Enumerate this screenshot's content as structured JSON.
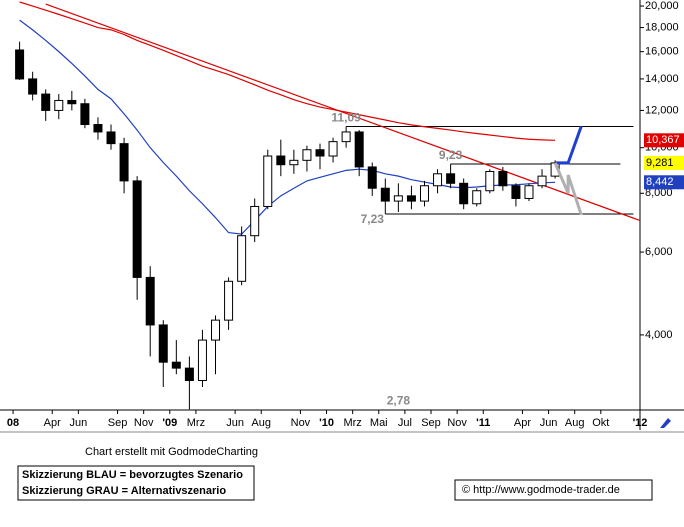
{
  "chart_data": {
    "type": "candlestick",
    "x": [
      "2008-01",
      "2008-02",
      "2008-03",
      "2008-04",
      "2008-05",
      "2008-06",
      "2008-07",
      "2008-08",
      "2008-09",
      "2008-10",
      "2008-11",
      "2008-12",
      "2009-01",
      "2009-02",
      "2009-03",
      "2009-04",
      "2009-05",
      "2009-06",
      "2009-07",
      "2009-08",
      "2009-09",
      "2009-10",
      "2009-11",
      "2009-12",
      "2010-01",
      "2010-02",
      "2010-03",
      "2010-04",
      "2010-05",
      "2010-06",
      "2010-07",
      "2010-08",
      "2010-09",
      "2010-10",
      "2010-11",
      "2010-12",
      "2011-01",
      "2011-02",
      "2011-03",
      "2011-04",
      "2011-05",
      "2011-06"
    ],
    "open": [
      16130,
      14000,
      13000,
      12000,
      12600,
      12400,
      11200,
      10800,
      10200,
      8500,
      5300,
      4200,
      3500,
      3400,
      3200,
      3900,
      4300,
      5200,
      6500,
      7500,
      9600,
      9200,
      9400,
      9900,
      9600,
      10300,
      10800,
      9100,
      8200,
      7700,
      7900,
      7700,
      8300,
      8800,
      8400,
      7600,
      8100,
      8900,
      8300,
      7800,
      8300,
      8700
    ],
    "high": [
      16800,
      14500,
      13300,
      13000,
      13200,
      12700,
      11600,
      11200,
      10500,
      8700,
      5600,
      4300,
      3900,
      3600,
      4100,
      4400,
      5300,
      6800,
      7800,
      9900,
      10400,
      9900,
      10100,
      10200,
      10500,
      11090,
      10900,
      9300,
      8600,
      8400,
      8300,
      8500,
      9000,
      9230,
      8600,
      8200,
      9000,
      9100,
      8400,
      8400,
      9000,
      9400
    ],
    "low": [
      13930,
      12600,
      11400,
      11500,
      12000,
      11000,
      10400,
      9900,
      8000,
      4750,
      3600,
      3100,
      3300,
      2780,
      3100,
      3300,
      4100,
      5100,
      6300,
      7400,
      8700,
      8800,
      8900,
      9000,
      9300,
      10000,
      8700,
      7900,
      7230,
      7300,
      7400,
      7500,
      8000,
      8200,
      7400,
      7500,
      8000,
      8100,
      7500,
      7700,
      8200,
      8600
    ],
    "close": [
      14000,
      13000,
      12000,
      12600,
      12400,
      11200,
      10800,
      10200,
      8500,
      5300,
      4200,
      3500,
      3400,
      3200,
      3900,
      4300,
      5200,
      6500,
      7500,
      9600,
      9200,
      9400,
      9900,
      9600,
      10300,
      10800,
      9100,
      8200,
      7700,
      7900,
      7700,
      8300,
      8800,
      8400,
      7600,
      8100,
      8900,
      8300,
      7800,
      8300,
      8700,
      9281
    ],
    "series": [
      {
        "color": "#2040c0",
        "values": [
          18670,
          17800,
          16900,
          16000,
          15100,
          14200,
          13300,
          12700,
          11800,
          10900,
          10000,
          9300,
          8700,
          8100,
          7600,
          7100,
          6600,
          6550,
          7000,
          7500,
          7900,
          8200,
          8500,
          8650,
          8800,
          8950,
          9000,
          8950,
          8800,
          8700,
          8550,
          8450,
          8350,
          8250,
          8220,
          8250,
          8300,
          8330,
          8340,
          8380,
          8420,
          8442
        ]
      },
      {
        "color": "#e00000",
        "values": [
          20400,
          20000,
          19600,
          19200,
          18800,
          18400,
          18000,
          17800,
          17400,
          16900,
          16500,
          16100,
          15700,
          15300,
          14900,
          14600,
          14300,
          13950,
          13600,
          13250,
          12950,
          12650,
          12400,
          12200,
          12050,
          11900,
          11750,
          11600,
          11450,
          11300,
          11180,
          11080,
          10990,
          10900,
          10800,
          10720,
          10640,
          10560,
          10480,
          10420,
          10390,
          10367
        ]
      }
    ],
    "trendline": {
      "color": "#e00000",
      "points": [
        [
          "2008-03",
          20200
        ],
        [
          "2012-01",
          6920
        ]
      ]
    },
    "levels": [
      {
        "value": 11090,
        "from": "2010-02",
        "to": "2011-12"
      },
      {
        "value": 9230,
        "from": "2010-10",
        "to": "2011-11"
      },
      {
        "value": 7230,
        "from": "2010-05",
        "to": "2011-12"
      }
    ],
    "scenarios": [
      {
        "color": "#2040d0",
        "points": [
          [
            "2011-06",
            9281
          ],
          [
            "2011-07",
            9281
          ],
          [
            "2011-08",
            11100
          ]
        ]
      },
      {
        "color": "#b0b0b0",
        "points": [
          [
            "2011-06",
            9281
          ],
          [
            "2011-07",
            8000
          ],
          [
            "2011-07",
            8750
          ],
          [
            "2011-08",
            7200
          ]
        ]
      }
    ],
    "annotations": [
      {
        "label": "11,09",
        "value": 11090,
        "x": "2010-02"
      },
      {
        "label": "9,23",
        "value": 9230,
        "x": "2010-10"
      },
      {
        "label": "7,23",
        "value": 7230,
        "x": "2010-04"
      },
      {
        "label": "2,78",
        "value": 2780,
        "x": "2010-06"
      }
    ],
    "price_labels": [
      {
        "value": 10367,
        "label": "10,367",
        "color": "#e00000",
        "text_color": "#ffffff"
      },
      {
        "value": 9281,
        "label": "9,281",
        "color": "#ffff00",
        "text_color": "#000000"
      },
      {
        "value": 8442,
        "label": "8,442",
        "color": "#2040c0",
        "text_color": "#ffffff"
      }
    ],
    "log_y": true,
    "ylim": [
      2770,
      20600
    ],
    "yticks": [
      {
        "value": 4000,
        "label": "4,000"
      },
      {
        "value": 6000,
        "label": "6,000"
      },
      {
        "value": 8000,
        "label": "8,000"
      },
      {
        "value": 10000,
        "label": "10,000"
      },
      {
        "value": 12000,
        "label": "12,000"
      },
      {
        "value": 14000,
        "label": "14,000"
      },
      {
        "value": 16000,
        "label": "16,000"
      },
      {
        "value": 18000,
        "label": "18,000"
      },
      {
        "value": 20000,
        "label": "20,000"
      }
    ],
    "xlim": [
      "2007-12",
      "2012-01"
    ],
    "xticks": [
      {
        "value": "2008-01",
        "label": "08"
      },
      {
        "value": "2008-04",
        "label": "Apr"
      },
      {
        "value": "2008-06",
        "label": "Jun"
      },
      {
        "value": "2008-09",
        "label": "Sep"
      },
      {
        "value": "2008-11",
        "label": "Nov"
      },
      {
        "value": "2009-01",
        "label": "'09"
      },
      {
        "value": "2009-03",
        "label": "Mrz"
      },
      {
        "value": "2009-06",
        "label": "Jun"
      },
      {
        "value": "2009-08",
        "label": "Aug"
      },
      {
        "value": "2009-11",
        "label": "Nov"
      },
      {
        "value": "2010-01",
        "label": "'10"
      },
      {
        "value": "2010-03",
        "label": "Mrz"
      },
      {
        "value": "2010-05",
        "label": "Mai"
      },
      {
        "value": "2010-07",
        "label": "Jul"
      },
      {
        "value": "2010-09",
        "label": "Sep"
      },
      {
        "value": "2010-11",
        "label": "Nov"
      },
      {
        "value": "2011-01",
        "label": "'11"
      },
      {
        "value": "2011-04",
        "label": "Apr"
      },
      {
        "value": "2011-06",
        "label": "Jun"
      },
      {
        "value": "2011-08",
        "label": "Aug"
      },
      {
        "value": "2011-10",
        "label": "Okt"
      },
      {
        "value": "2012-01",
        "label": "'12"
      }
    ]
  },
  "footer": {
    "credit": "Chart erstellt mit GodmodeCharting",
    "legend": [
      "Skizzierung BLAU = bevorzugtes Szenario",
      "Skizzierung GRAU = Alternativszenario"
    ],
    "copyright": "© http://www.godmode-trader.de"
  }
}
